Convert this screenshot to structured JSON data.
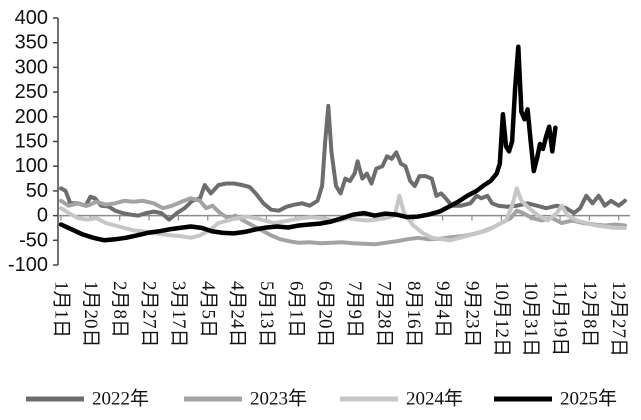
{
  "chart_data": {
    "type": "line",
    "ylim": [
      -100,
      400
    ],
    "yticks": [
      400,
      350,
      300,
      250,
      200,
      150,
      100,
      50,
      0,
      -50,
      -100
    ],
    "x_ticks": [
      "1月1日",
      "1月20日",
      "2月8日",
      "2月27日",
      "3月17日",
      "4月5日",
      "4月24日",
      "5月13日",
      "6月1日",
      "6月20日",
      "7月9日",
      "7月28日",
      "8月16日",
      "9月4日",
      "9月23日",
      "10月12日",
      "10月31日",
      "11月19日",
      "12月8日",
      "12月27日"
    ],
    "grid": false,
    "legend": "bottom",
    "series": [
      {
        "name": "2022年",
        "color": "#6d6d6d",
        "points": [
          [
            "1月1日",
            55
          ],
          [
            "1月4日",
            50
          ],
          [
            "1月7日",
            25
          ],
          [
            "1月12日",
            25
          ],
          [
            "1月17日",
            20
          ],
          [
            "1月20日",
            38
          ],
          [
            "1月23日",
            35
          ],
          [
            "1月27日",
            20
          ],
          [
            "2月1日",
            18
          ],
          [
            "2月5日",
            10
          ],
          [
            "2月10日",
            5
          ],
          [
            "2月15日",
            2
          ],
          [
            "2月20日",
            0
          ],
          [
            "2月25日",
            5
          ],
          [
            "3月1日",
            8
          ],
          [
            "3月6日",
            5
          ],
          [
            "3月11日",
            -8
          ],
          [
            "3月16日",
            5
          ],
          [
            "3月21日",
            15
          ],
          [
            "3月26日",
            30
          ],
          [
            "3月31日",
            35
          ],
          [
            "4月3日",
            62
          ],
          [
            "4月7日",
            45
          ],
          [
            "4月12日",
            62
          ],
          [
            "4月17日",
            65
          ],
          [
            "4月22日",
            65
          ],
          [
            "4月27日",
            62
          ],
          [
            "5月2日",
            58
          ],
          [
            "5月6日",
            45
          ],
          [
            "5月11日",
            25
          ],
          [
            "5月16日",
            12
          ],
          [
            "5月21日",
            10
          ],
          [
            "5月26日",
            18
          ],
          [
            "5月31日",
            22
          ],
          [
            "6月5日",
            25
          ],
          [
            "6月10日",
            20
          ],
          [
            "6月15日",
            30
          ],
          [
            "6月18日",
            60
          ],
          [
            "6月20日",
            150
          ],
          [
            "6月22日",
            222
          ],
          [
            "6月24日",
            130
          ],
          [
            "6月27日",
            60
          ],
          [
            "6月30日",
            45
          ],
          [
            "7月3日",
            75
          ],
          [
            "7月6日",
            70
          ],
          [
            "7月9日",
            85
          ],
          [
            "7月11日",
            110
          ],
          [
            "7月14日",
            75
          ],
          [
            "7月17日",
            85
          ],
          [
            "7月20日",
            65
          ],
          [
            "7月23日",
            95
          ],
          [
            "7月27日",
            100
          ],
          [
            "7月30日",
            120
          ],
          [
            "8月2日",
            115
          ],
          [
            "8月5日",
            128
          ],
          [
            "8月8日",
            105
          ],
          [
            "8月11日",
            100
          ],
          [
            "8月14日",
            70
          ],
          [
            "8月17日",
            60
          ],
          [
            "8月20日",
            80
          ],
          [
            "8月24日",
            80
          ],
          [
            "8月28日",
            75
          ],
          [
            "8月31日",
            40
          ],
          [
            "9月3日",
            45
          ],
          [
            "9月6日",
            35
          ],
          [
            "9月10日",
            20
          ],
          [
            "9月16日",
            20
          ],
          [
            "9月22日",
            25
          ],
          [
            "9月26日",
            40
          ],
          [
            "9月29日",
            35
          ],
          [
            "10月3日",
            40
          ],
          [
            "10月6日",
            25
          ],
          [
            "10月10日",
            20
          ],
          [
            "10月16日",
            18
          ],
          [
            "10月22日",
            20
          ],
          [
            "10月29日",
            25
          ],
          [
            "11月4日",
            20
          ],
          [
            "11月10日",
            15
          ],
          [
            "11月17日",
            20
          ],
          [
            "11月23日",
            15
          ],
          [
            "11月28日",
            5
          ],
          [
            "12月2日",
            15
          ],
          [
            "12月6日",
            40
          ],
          [
            "12月10日",
            25
          ],
          [
            "12月14日",
            40
          ],
          [
            "12月18日",
            20
          ],
          [
            "12月22日",
            30
          ],
          [
            "12月27日",
            20
          ],
          [
            "12月31日",
            30
          ]
        ]
      },
      {
        "name": "2023年",
        "color": "#a3a3a3",
        "points": [
          [
            "1月1日",
            30
          ],
          [
            "1月6日",
            20
          ],
          [
            "1月12日",
            25
          ],
          [
            "1月18日",
            20
          ],
          [
            "1月24日",
            28
          ],
          [
            "1月30日",
            22
          ],
          [
            "2月5日",
            25
          ],
          [
            "2月11日",
            30
          ],
          [
            "2月17日",
            28
          ],
          [
            "2月23日",
            30
          ],
          [
            "3月1日",
            25
          ],
          [
            "3月7日",
            15
          ],
          [
            "3月13日",
            20
          ],
          [
            "3月19日",
            28
          ],
          [
            "3月25日",
            35
          ],
          [
            "3月31日",
            30
          ],
          [
            "4月4日",
            15
          ],
          [
            "4月8日",
            20
          ],
          [
            "4月13日",
            5
          ],
          [
            "4月18日",
            -5
          ],
          [
            "4月23日",
            0
          ],
          [
            "4月28日",
            -10
          ],
          [
            "5月4日",
            -20
          ],
          [
            "5月10日",
            -30
          ],
          [
            "5月16日",
            -40
          ],
          [
            "5月22日",
            -48
          ],
          [
            "5月28日",
            -52
          ],
          [
            "6月3日",
            -55
          ],
          [
            "6月10日",
            -54
          ],
          [
            "6月17日",
            -56
          ],
          [
            "6月24日",
            -55
          ],
          [
            "7月1日",
            -54
          ],
          [
            "7月8日",
            -56
          ],
          [
            "7月15日",
            -57
          ],
          [
            "7月22日",
            -58
          ],
          [
            "7月29日",
            -55
          ],
          [
            "8月5日",
            -52
          ],
          [
            "8月12日",
            -48
          ],
          [
            "8月19日",
            -45
          ],
          [
            "8月26日",
            -48
          ],
          [
            "9月2日",
            -47
          ],
          [
            "9月9日",
            -44
          ],
          [
            "9月16日",
            -42
          ],
          [
            "9月23日",
            -38
          ],
          [
            "9月30日",
            -32
          ],
          [
            "10月6日",
            -25
          ],
          [
            "10月12日",
            -15
          ],
          [
            "10月18日",
            -5
          ],
          [
            "10月22日",
            10
          ],
          [
            "10月26日",
            5
          ],
          [
            "11月1日",
            -5
          ],
          [
            "11月7日",
            -10
          ],
          [
            "11月14日",
            -5
          ],
          [
            "11月20日",
            -15
          ],
          [
            "11月27日",
            -10
          ],
          [
            "12月4日",
            -15
          ],
          [
            "12月11日",
            -18
          ],
          [
            "12月18日",
            -20
          ],
          [
            "12月25日",
            -18
          ],
          [
            "12月31日",
            -20
          ]
        ]
      },
      {
        "name": "2024年",
        "color": "#c6c6c6",
        "points": [
          [
            "1月1日",
            15
          ],
          [
            "1月6日",
            5
          ],
          [
            "1月12日",
            -5
          ],
          [
            "1月18日",
            -8
          ],
          [
            "1月24日",
            -5
          ],
          [
            "1月30日",
            -15
          ],
          [
            "2月5日",
            -20
          ],
          [
            "2月11日",
            -25
          ],
          [
            "2月17日",
            -30
          ],
          [
            "2月23日",
            -32
          ],
          [
            "3月1日",
            -35
          ],
          [
            "3月7日",
            -38
          ],
          [
            "3月13日",
            -40
          ],
          [
            "3月19日",
            -42
          ],
          [
            "3月25日",
            -45
          ],
          [
            "3月31日",
            -40
          ],
          [
            "4月6日",
            -30
          ],
          [
            "4月12日",
            -15
          ],
          [
            "4月18日",
            -10
          ],
          [
            "4月24日",
            -5
          ],
          [
            "4月30日",
            -2
          ],
          [
            "5月6日",
            -5
          ],
          [
            "5月12日",
            -10
          ],
          [
            "5月18日",
            -15
          ],
          [
            "5月24日",
            -12
          ],
          [
            "5月30日",
            -8
          ],
          [
            "6月5日",
            -5
          ],
          [
            "6月11日",
            -3
          ],
          [
            "6月17日",
            -5
          ],
          [
            "6月23日",
            -8
          ],
          [
            "6月29日",
            -10
          ],
          [
            "7月5日",
            -5
          ],
          [
            "7月11日",
            -8
          ],
          [
            "7月17日",
            -10
          ],
          [
            "7月23日",
            -8
          ],
          [
            "7月29日",
            -5
          ],
          [
            "8月4日",
            0
          ],
          [
            "8月7日",
            40
          ],
          [
            "8月10日",
            5
          ],
          [
            "8月16日",
            -20
          ],
          [
            "8月22日",
            -35
          ],
          [
            "8月28日",
            -45
          ],
          [
            "9月3日",
            -48
          ],
          [
            "9月9日",
            -50
          ],
          [
            "9月15日",
            -45
          ],
          [
            "9月21日",
            -40
          ],
          [
            "9月27日",
            -35
          ],
          [
            "10月3日",
            -30
          ],
          [
            "10月9日",
            -20
          ],
          [
            "10月15日",
            -10
          ],
          [
            "10月19日",
            20
          ],
          [
            "10月22日",
            55
          ],
          [
            "10月25日",
            30
          ],
          [
            "10月30日",
            15
          ],
          [
            "11月5日",
            0
          ],
          [
            "11月11日",
            -10
          ],
          [
            "11月17日",
            5
          ],
          [
            "11月20日",
            20
          ],
          [
            "11月24日",
            0
          ],
          [
            "11月30日",
            -10
          ],
          [
            "12月6日",
            -15
          ],
          [
            "12月12日",
            -20
          ],
          [
            "12月18日",
            -22
          ],
          [
            "12月24日",
            -25
          ],
          [
            "12月31日",
            -25
          ]
        ]
      },
      {
        "name": "2025年",
        "color": "#000000",
        "points": [
          [
            "1月1日",
            -18
          ],
          [
            "1月8日",
            -28
          ],
          [
            "1月15日",
            -38
          ],
          [
            "1月22日",
            -45
          ],
          [
            "1月29日",
            -50
          ],
          [
            "2月5日",
            -48
          ],
          [
            "2月12日",
            -45
          ],
          [
            "2月19日",
            -40
          ],
          [
            "2月26日",
            -35
          ],
          [
            "3月4日",
            -32
          ],
          [
            "3月11日",
            -28
          ],
          [
            "3月18日",
            -25
          ],
          [
            "3月25日",
            -22
          ],
          [
            "4月1日",
            -25
          ],
          [
            "4月8日",
            -32
          ],
          [
            "4月15日",
            -35
          ],
          [
            "4月22日",
            -36
          ],
          [
            "4月29日",
            -33
          ],
          [
            "5月6日",
            -28
          ],
          [
            "5月13日",
            -24
          ],
          [
            "5月20日",
            -22
          ],
          [
            "5月27日",
            -24
          ],
          [
            "6月3日",
            -20
          ],
          [
            "6月10日",
            -18
          ],
          [
            "6月17日",
            -16
          ],
          [
            "6月24日",
            -12
          ],
          [
            "7月1日",
            -5
          ],
          [
            "7月8日",
            2
          ],
          [
            "7月15日",
            5
          ],
          [
            "7月22日",
            0
          ],
          [
            "7月29日",
            4
          ],
          [
            "8月5日",
            2
          ],
          [
            "8月12日",
            -3
          ],
          [
            "8月19日",
            -2
          ],
          [
            "8月26日",
            2
          ],
          [
            "9月2日",
            8
          ],
          [
            "9月8日",
            18
          ],
          [
            "9月14日",
            28
          ],
          [
            "9月20日",
            40
          ],
          [
            "9月26日",
            50
          ],
          [
            "10月1日",
            62
          ],
          [
            "10月5日",
            70
          ],
          [
            "10月9日",
            85
          ],
          [
            "10月11日",
            105
          ],
          [
            "10月13日",
            205
          ],
          [
            "10月15日",
            140
          ],
          [
            "10月17日",
            130
          ],
          [
            "10月19日",
            150
          ],
          [
            "10月21日",
            260
          ],
          [
            "10月23日",
            342
          ],
          [
            "10月25日",
            210
          ],
          [
            "10月27日",
            195
          ],
          [
            "10月29日",
            215
          ],
          [
            "10月31日",
            150
          ],
          [
            "11月2日",
            90
          ],
          [
            "11月4日",
            115
          ],
          [
            "11月6日",
            145
          ],
          [
            "11月8日",
            135
          ],
          [
            "11月10日",
            160
          ],
          [
            "11月12日",
            180
          ],
          [
            "11月14日",
            130
          ],
          [
            "11月16日",
            178
          ]
        ]
      }
    ]
  }
}
